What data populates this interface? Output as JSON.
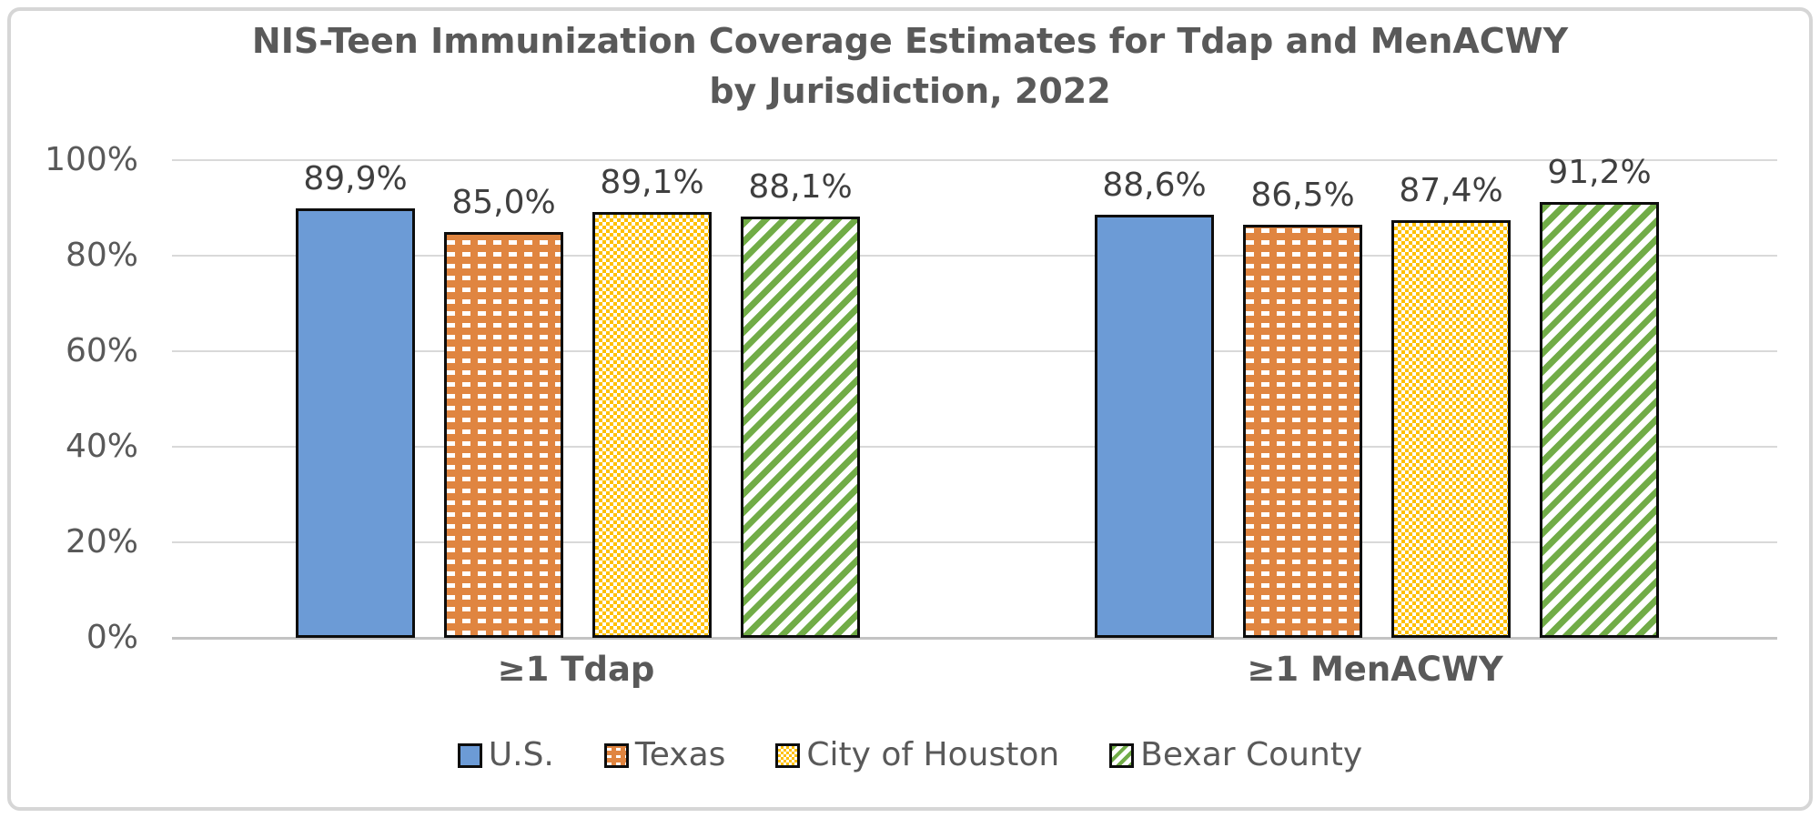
{
  "chart_data": {
    "type": "bar",
    "title_line1": "NIS-Teen Immunization Coverage Estimates for Tdap and MenACWY",
    "title_line2": "by Jurisdiction, 2022",
    "categories": [
      "≥1 Tdap",
      "≥1 MenACWY"
    ],
    "series": [
      {
        "name": "U.S.",
        "color": "#6c9bd6",
        "pattern": "solid",
        "values": [
          89.9,
          88.6
        ],
        "labels": [
          "89,9%",
          "88,6%"
        ]
      },
      {
        "name": "Texas",
        "color": "#e08540",
        "pattern": "white-dash-rows",
        "values": [
          85.0,
          86.5
        ],
        "labels": [
          "85,0%",
          "86,5%"
        ]
      },
      {
        "name": "City of Houston",
        "color": "#ffc000",
        "pattern": "checker-dots",
        "values": [
          89.1,
          87.4
        ],
        "labels": [
          "89,1%",
          "87,4%"
        ]
      },
      {
        "name": "Bexar County",
        "color": "#71ac47",
        "pattern": "diagonal-stripes",
        "values": [
          88.1,
          91.2
        ],
        "labels": [
          "88,1%",
          "91,2%"
        ]
      }
    ],
    "y_ticks": [
      {
        "label": "0%",
        "value": 0
      },
      {
        "label": "20%",
        "value": 20
      },
      {
        "label": "40%",
        "value": 40
      },
      {
        "label": "60%",
        "value": 60
      },
      {
        "label": "80%",
        "value": 80
      },
      {
        "label": "100%",
        "value": 100
      }
    ],
    "ylim": [
      0,
      100
    ],
    "xlabel": "",
    "ylabel": "",
    "grid": true,
    "legend_position": "bottom",
    "value_label_decimal_separator": ",",
    "colors": {
      "title_text": "#595959",
      "tick_text": "#595959",
      "value_text": "#3f3f3f",
      "gridline": "#d9d9d9",
      "axis_line": "#c3c3c3",
      "bar_border": "#0d0d0d",
      "frame_border": "#d6d6d6"
    }
  }
}
